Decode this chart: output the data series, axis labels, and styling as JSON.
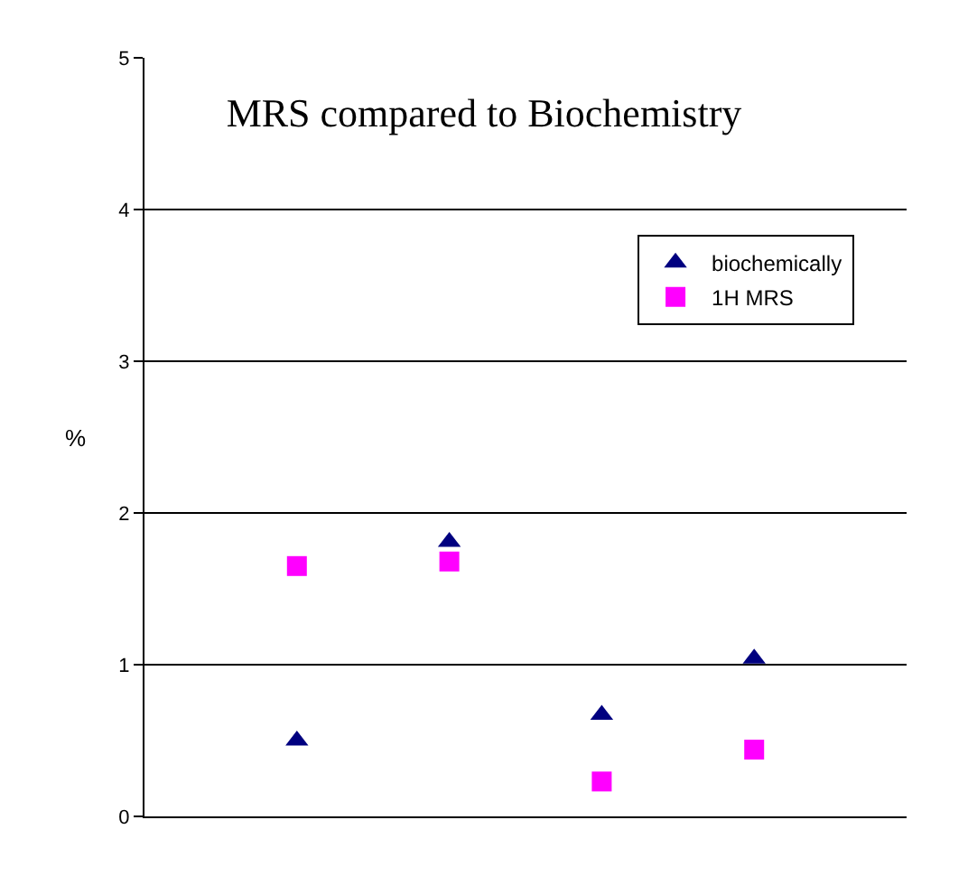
{
  "chart_data": {
    "type": "scatter",
    "title": "MRS compared to Biochemistry",
    "ylabel": "%",
    "categories": [
      null,
      null,
      null,
      null
    ],
    "series": [
      {
        "name": "biochemically",
        "color": "#000080",
        "marker": "triangle",
        "values": [
          0.5,
          1.81,
          0.67,
          1.04
        ]
      },
      {
        "name": "1H MRS",
        "color": "#ff00ff",
        "marker": "square",
        "values": [
          1.65,
          1.68,
          0.23,
          0.44
        ]
      }
    ],
    "ylim": [
      0,
      5
    ],
    "yticks": [
      0,
      1,
      2,
      3,
      4,
      5
    ],
    "grid": "y",
    "legend": "top right",
    "tick_labels": "y"
  }
}
